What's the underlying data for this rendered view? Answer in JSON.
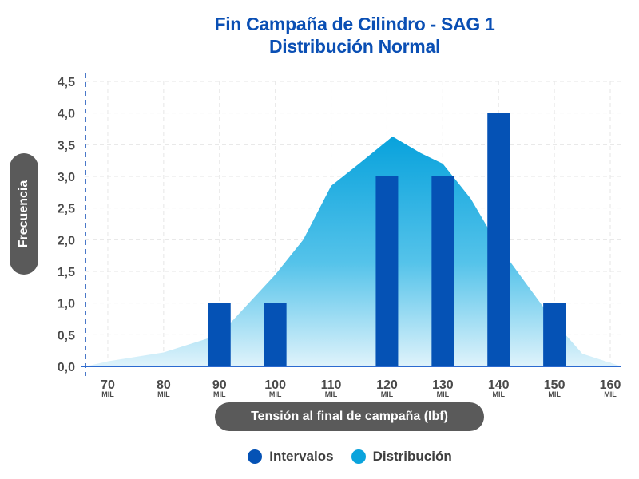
{
  "chart_data": {
    "type": "bar",
    "title": [
      "Fin Campaña de Cilindro - SAG 1",
      "Distribución Normal"
    ],
    "ylabel": "Frecuencia",
    "xlabel": "Tensión al final de campaña (Ibf)",
    "ylim": [
      0,
      4.5
    ],
    "yticks": [
      "0,0",
      "0,5",
      "1,0",
      "1,5",
      "2,0",
      "2,5",
      "3,0",
      "3,5",
      "4,0",
      "4,5"
    ],
    "xlim": [
      66,
      162
    ],
    "xticks": [
      70,
      80,
      90,
      100,
      110,
      120,
      130,
      140,
      150,
      160
    ],
    "xtick_suffix": "MIL",
    "grid": true,
    "legend_position": "bottom",
    "series": [
      {
        "name": "Intervalos",
        "type": "bar",
        "color": "#0552b5",
        "x": [
          90,
          100,
          120,
          130,
          140,
          150
        ],
        "values": [
          1,
          1,
          3,
          3,
          4,
          1
        ]
      },
      {
        "name": "Distribución",
        "type": "area",
        "color": "#0aa3dc",
        "x": [
          66,
          70,
          80,
          90,
          100,
          105,
          110,
          115,
          121,
          126,
          130,
          135,
          140,
          145,
          150,
          155,
          162
        ],
        "values": [
          0,
          0.08,
          0.22,
          0.5,
          1.45,
          2.0,
          2.85,
          3.2,
          3.63,
          3.37,
          3.2,
          2.65,
          1.9,
          1.3,
          0.7,
          0.2,
          0
        ]
      }
    ]
  }
}
